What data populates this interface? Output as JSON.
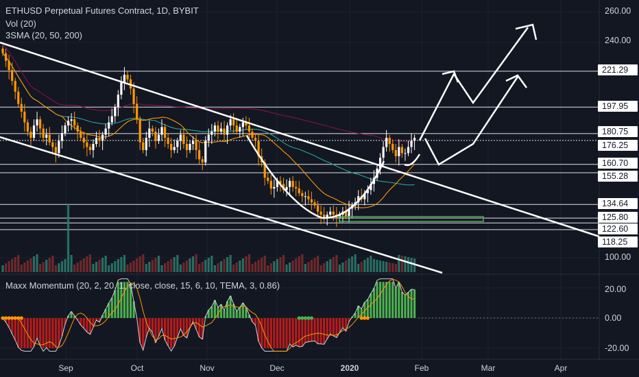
{
  "header": {
    "title": "ETHUSD Perpetual Futures Contract, 1D, BYBIT",
    "vol": "Vol (20)",
    "sma": "3SMA (20, 50, 200)",
    "momentum": "Maxx Momentum (20, 2, 20, 1, close, close, 15, 6, 10, TEMA, 3, 0.86)"
  },
  "price_axis": {
    "ticks": [
      "260.00",
      "240.00",
      "100.00"
    ],
    "levels": [
      "221.29",
      "197.95",
      "180.75",
      "176.25",
      "160.70",
      "155.28",
      "134.64",
      "125.80",
      "122.60",
      "118.25"
    ]
  },
  "momentum_axis": {
    "ticks": [
      "20.00",
      "0.00",
      "-20.00"
    ]
  },
  "time_axis": {
    "labels": [
      "Sep",
      "Oct",
      "Nov",
      "Dec",
      "2020",
      "Feb",
      "Mar",
      "Apr"
    ]
  },
  "colors": {
    "background": "#131722",
    "up": "#ffffff",
    "down": "#ff9800",
    "sma20": "#ff9800",
    "sma50": "#26a69a",
    "sma200": "#880e4f",
    "zone": "#4caf50"
  },
  "chart_data": {
    "type": "candlestick",
    "title": "ETHUSD Perpetual Futures Contract, 1D, BYBIT",
    "x_range": [
      "2019-08-03",
      "2020-04-20"
    ],
    "y_range": [
      95,
      265
    ],
    "closes": [
      233,
      228,
      222,
      215,
      208,
      200,
      195,
      188,
      182,
      178,
      186,
      190,
      184,
      178,
      180,
      175,
      172,
      168,
      176,
      181,
      186,
      189,
      190,
      186,
      182,
      178,
      175,
      172,
      170,
      174,
      178,
      176,
      180,
      184,
      188,
      192,
      198,
      206,
      214,
      219,
      216,
      210,
      200,
      190,
      175,
      170,
      178,
      184,
      182,
      176,
      180,
      185,
      178,
      174,
      170,
      172,
      176,
      180,
      174,
      170,
      174,
      176,
      170,
      164,
      162,
      176,
      180,
      182,
      186,
      182,
      184,
      180,
      186,
      190,
      186,
      182,
      185,
      188,
      186,
      182,
      178,
      176,
      166,
      162,
      152,
      150,
      145,
      146,
      150,
      148,
      144,
      146,
      150,
      146,
      145,
      142,
      140,
      140,
      138,
      136,
      134,
      130,
      128,
      126,
      128,
      130,
      128,
      126,
      128,
      130,
      127,
      132,
      134,
      136,
      140,
      138,
      142,
      144,
      148,
      152,
      158,
      165,
      172,
      178,
      174,
      170,
      166,
      172,
      168,
      168,
      172,
      176,
      178
    ],
    "levels": [
      221.29,
      197.95,
      180.75,
      176.25,
      160.7,
      155.28,
      134.64,
      125.8,
      122.6,
      118.25
    ],
    "momentum_range": [
      -25,
      30
    ],
    "momentum_ticks": [
      20,
      0,
      -20
    ]
  }
}
